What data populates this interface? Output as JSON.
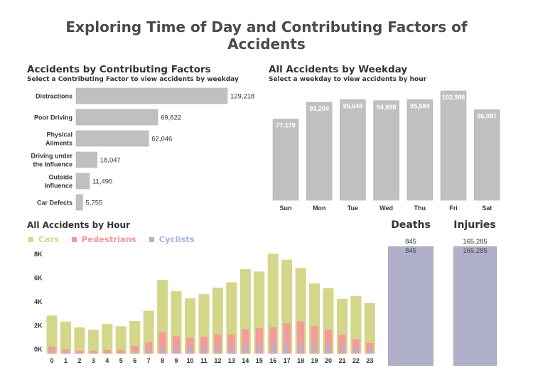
{
  "page": {
    "title_line1": "Exploring Time of Day and Contributing Factors of",
    "title_line2": "Accidents"
  },
  "factors": {
    "title": "Accidents by Contributing Factors",
    "subtitle": "Select a Contributing Factor to view accidents by weekday"
  },
  "weekday": {
    "title": "All Accidents by Weekday",
    "subtitle": "Select a weekday to view accidents by hour"
  },
  "hourly": {
    "title": "All  Accidents by Hour",
    "legend": [
      {
        "label": "Cars",
        "color": "#d4d68a"
      },
      {
        "label": "Pedestrians",
        "color": "#f49a9a"
      },
      {
        "label": "Cyclists",
        "color": "#a9b6dc"
      }
    ]
  },
  "kpis": {
    "deaths": {
      "title": "Deaths",
      "value": "845",
      "color": "#b1b0cb"
    },
    "injuries": {
      "title": "Injuries",
      "value": "165,285",
      "color": "#b1b0cb"
    }
  },
  "chart_data": [
    {
      "type": "bar",
      "orientation": "horizontal",
      "title": "Accidents by Contributing Factors",
      "subtitle": "Select a Contributing Factor to view accidents by weekday",
      "categories": [
        "Distractions",
        "Poor Driving",
        "Physical Ailments",
        "Driving under the Influence",
        "Outside Influence",
        "Car Defects"
      ],
      "category_display": [
        [
          "Distractions"
        ],
        [
          "Poor Driving"
        ],
        [
          "Physical",
          "Ailments"
        ],
        [
          "Driving under",
          "the Influence"
        ],
        [
          "Outside",
          "Influence"
        ],
        [
          "Car Defects"
        ]
      ],
      "values": [
        129218,
        69822,
        62046,
        18047,
        11490,
        5755
      ],
      "value_labels": [
        "129,218",
        "69,822",
        "62,046",
        "18,047",
        "11,490",
        "5,755"
      ],
      "color": "#c0c0c0",
      "grid": false
    },
    {
      "type": "bar",
      "title": "All Accidents by Weekday",
      "subtitle": "Select a weekday to view accidents by hour",
      "categories": [
        "Sun",
        "Mon",
        "Tue",
        "Wed",
        "Thu",
        "Fri",
        "Sat"
      ],
      "values": [
        77179,
        93204,
        95648,
        94698,
        95584,
        103988,
        86087
      ],
      "value_labels": [
        "77,179",
        "93,204",
        "95,648",
        "94,698",
        "95,584",
        "103,988",
        "86,087"
      ],
      "color": "#c0c0c0",
      "grid": false
    },
    {
      "type": "bar",
      "title": "All  Accidents by Hour",
      "categories": [
        "0",
        "1",
        "2",
        "3",
        "4",
        "5",
        "6",
        "7",
        "8",
        "9",
        "10",
        "11",
        "12",
        "13",
        "14",
        "15",
        "16",
        "17",
        "18",
        "19",
        "20",
        "21",
        "22",
        "23"
      ],
      "series": [
        {
          "name": "Cars",
          "color": "#d4d68a",
          "values": [
            3200,
            2700,
            2200,
            2000,
            2500,
            2300,
            2750,
            3600,
            6200,
            5250,
            4650,
            5000,
            5550,
            6000,
            7100,
            6900,
            8400,
            7900,
            7200,
            5900,
            5500,
            4600,
            4850,
            4250
          ]
        },
        {
          "name": "Pedestrians",
          "color": "#f49a9a",
          "values": [
            600,
            350,
            250,
            250,
            300,
            300,
            650,
            950,
            1800,
            1450,
            1350,
            1400,
            1600,
            1600,
            2050,
            2150,
            2200,
            2550,
            2700,
            2300,
            2000,
            1600,
            1200,
            900
          ]
        },
        {
          "name": "Cyclists",
          "color": "#a9b6dc",
          "values": [
            300,
            150,
            100,
            100,
            100,
            100,
            200,
            350,
            550,
            600,
            550,
            600,
            600,
            550,
            850,
            650,
            900,
            950,
            1000,
            950,
            900,
            750,
            550,
            350
          ]
        }
      ],
      "y_ticks": [
        0,
        2000,
        4000,
        6000,
        8000
      ],
      "y_tick_labels": [
        "0K",
        "2K",
        "4K",
        "6K",
        "8K"
      ],
      "ylim": [
        0,
        8000
      ],
      "legend": "top-left",
      "overlay": true,
      "grid": false
    }
  ]
}
